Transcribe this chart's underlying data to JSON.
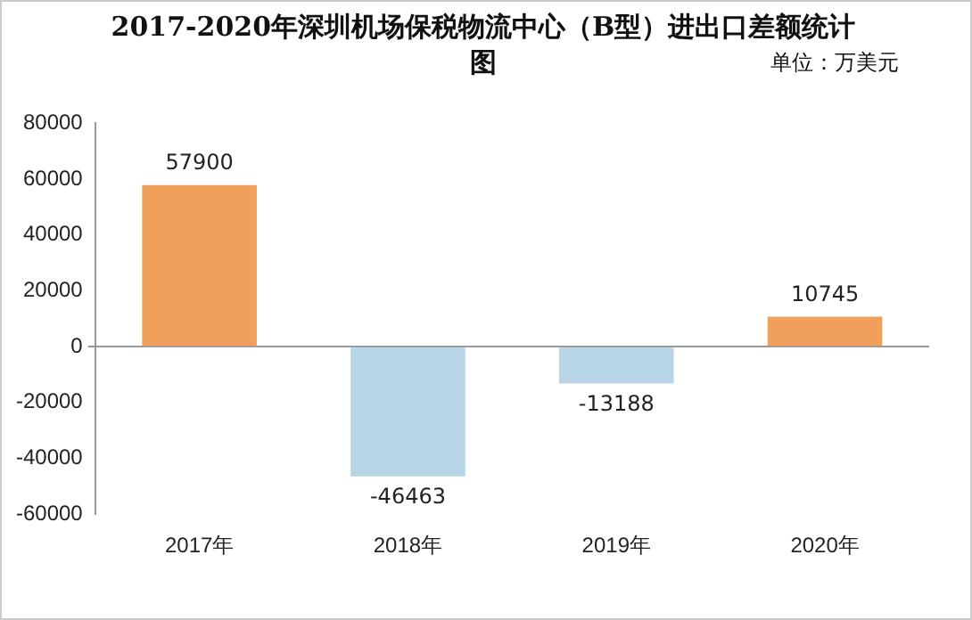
{
  "chart_data": {
    "type": "bar",
    "title": "2017-2020年深圳机场保税物流中心（B型）进出口差额统计图",
    "annotations": [
      "单位：万美元"
    ],
    "categories": [
      "2017年",
      "2018年",
      "2019年",
      "2020年"
    ],
    "values": [
      57900,
      -46463,
      -13188,
      10745
    ],
    "colors": [
      "#f1a05c",
      "#b7d5e6",
      "#b7d5e6",
      "#f1a05c"
    ],
    "ylim": [
      -60000,
      80000
    ],
    "yticks": [
      -60000,
      -40000,
      -20000,
      0,
      20000,
      40000,
      60000,
      80000
    ],
    "data_labels": true,
    "legend": false
  }
}
